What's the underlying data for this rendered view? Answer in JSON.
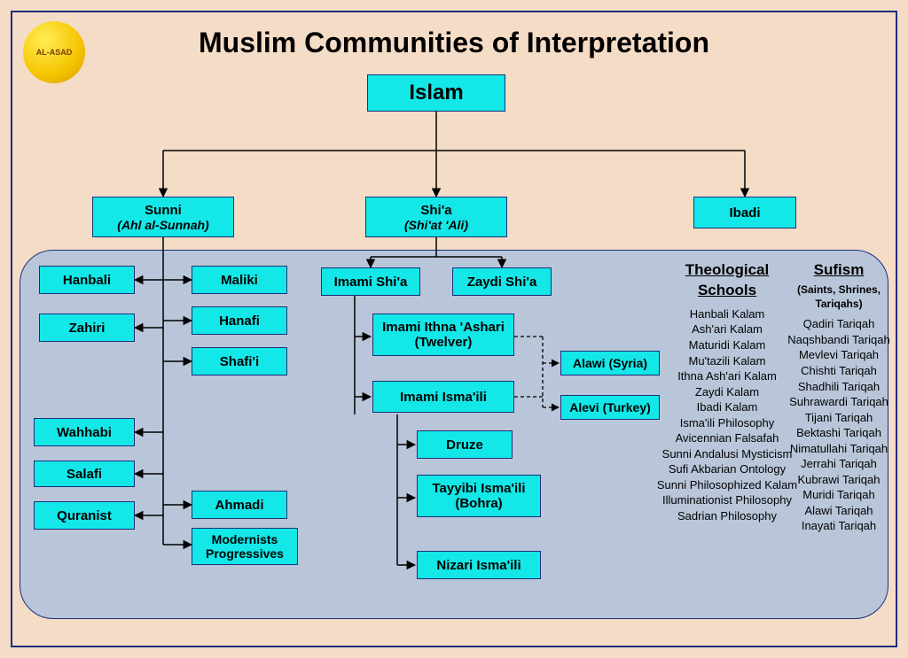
{
  "page": {
    "title": "Muslim Communities of Interpretation",
    "logo_text": "AL-ASAD",
    "bg_color": "#f5dcc7",
    "node_fill": "#14e7e7",
    "node_border": "#1a2f7a",
    "panel_fill": "#b9c6d9",
    "frame_border": "#1a2f7a"
  },
  "nodes": {
    "islam": "Islam",
    "sunni": "Sunni",
    "sunni_sub": "(Ahl al-Sunnah)",
    "shia": "Shi'a",
    "shia_sub": "(Shi'at 'Ali)",
    "ibadi": "Ibadi",
    "hanbali": "Hanbali",
    "zahiri": "Zahiri",
    "wahhabi": "Wahhabi",
    "salafi": "Salafi",
    "quranist": "Quranist",
    "maliki": "Maliki",
    "hanafi": "Hanafi",
    "shafii": "Shafi'i",
    "ahmadi": "Ahmadi",
    "modern": "Modernists Progressives",
    "imami_shia": "Imami Shi'a",
    "zaydi_shia": "Zaydi Shi'a",
    "twelver": "Imami  Ithna 'Ashari (Twelver)",
    "ismaili": "Imami Isma'ili",
    "druze": "Druze",
    "tayyibi": "Tayyibi Isma'ili (Bohra)",
    "nizari": "Nizari Isma'ili",
    "alawi": "Alawi (Syria)",
    "alevi": "Alevi (Turkey)"
  },
  "lists": {
    "theo_hdr": "Theological Schools",
    "theo_items": [
      "Hanbali Kalam",
      "Ash'ari Kalam",
      "Maturidi Kalam",
      "Mu'tazili Kalam",
      "Ithna Ash'ari Kalam",
      "Zaydi Kalam",
      "Ibadi Kalam",
      "Isma'ili Philosophy",
      "Avicennian Falsafah",
      "Sunni Andalusi Mysticism",
      "Sufi Akbarian Ontology",
      "Sunni Philosophized Kalam",
      "Illuminationist Philosophy",
      "Sadrian Philosophy"
    ],
    "sufi_hdr": "Sufism",
    "sufi_sub": "(Saints, Shrines, Tariqahs)",
    "sufi_items": [
      "Qadiri Tariqah",
      "Naqshbandi Tariqah",
      "Mevlevi Tariqah",
      "Chishti Tariqah",
      "Shadhili Tariqah",
      "Suhrawardi Tariqah",
      "Tijani Tariqah",
      "Bektashi Tariqah",
      "Nimatullahi Tariqah",
      "Jerrahi Tariqah",
      "Kubrawi Tariqah",
      "Muridi Tariqah",
      "Alawi Tariqah",
      "Inayati Tariqah"
    ]
  }
}
